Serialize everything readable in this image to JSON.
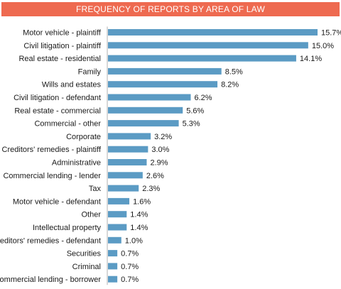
{
  "chart_data": {
    "type": "bar",
    "orientation": "horizontal",
    "title": "FREQUENCY OF REPORTS BY AREA OF LAW",
    "categories": [
      "Motor vehicle - plaintiff",
      "Civil litigation - plaintiff",
      "Real estate - residential",
      "Family",
      "Wills and estates",
      "Civil litigation - defendant",
      "Real estate - commercial",
      "Commercial - other",
      "Corporate",
      "Creditors' remedies - plaintiff",
      "Administrative",
      "Commercial lending - lender",
      "Tax",
      "Motor vehicle - defendant",
      "Other",
      "Intellectual property",
      "Creditors' remedies - defendant",
      "Securities",
      "Criminal",
      "Commercial lending - borrower"
    ],
    "values": [
      15.7,
      15.0,
      14.1,
      8.5,
      8.2,
      6.2,
      5.6,
      5.3,
      3.2,
      3.0,
      2.9,
      2.6,
      2.3,
      1.6,
      1.4,
      1.4,
      1.0,
      0.7,
      0.7,
      0.7
    ],
    "value_labels": [
      "15.7%",
      "15.0%",
      "14.1%",
      "8.5%",
      "8.2%",
      "6.2%",
      "5.6%",
      "5.3%",
      "3.2%",
      "3.0%",
      "2.9%",
      "2.6%",
      "2.3%",
      "1.6%",
      "1.4%",
      "1.4%",
      "1.0%",
      "0.7%",
      "0.7%",
      "0.7%"
    ],
    "xlim": [
      0,
      15.7
    ],
    "grid": false,
    "colors": {
      "bar": "#5b9bc4",
      "title_bar": "#ee6a50",
      "axis": "#b0b0b0"
    }
  }
}
